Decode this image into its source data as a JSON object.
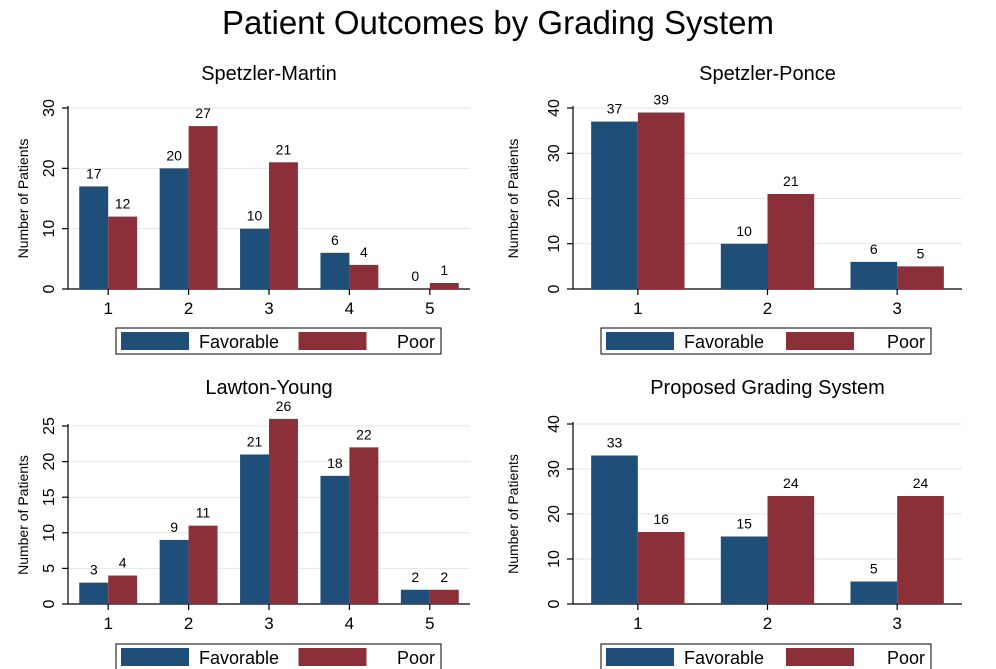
{
  "title": "Patient Outcomes by Grading System",
  "colors": {
    "favorable": "#1f4e79",
    "poor": "#8b3038",
    "axis": "#000000",
    "grid": "#e6e6e6"
  },
  "chart_data": [
    {
      "type": "bar",
      "title": "Spetzler-Martin",
      "categories": [
        "1",
        "2",
        "3",
        "4",
        "5"
      ],
      "series": [
        {
          "name": "Favorable",
          "values": [
            17,
            20,
            10,
            6,
            0
          ]
        },
        {
          "name": "Poor",
          "values": [
            12,
            27,
            21,
            4,
            1
          ]
        }
      ],
      "ylabel": "Number of Patients",
      "ylim": [
        0,
        30
      ],
      "yticks": [
        0,
        10,
        20,
        30
      ],
      "grid": true,
      "legend": "bottom"
    },
    {
      "type": "bar",
      "title": "Spetzler-Ponce",
      "categories": [
        "1",
        "2",
        "3"
      ],
      "series": [
        {
          "name": "Favorable",
          "values": [
            37,
            10,
            6
          ]
        },
        {
          "name": "Poor",
          "values": [
            39,
            21,
            5
          ]
        }
      ],
      "ylabel": "Number of Patients",
      "ylim": [
        0,
        40
      ],
      "yticks": [
        0,
        10,
        20,
        30,
        40
      ],
      "grid": true,
      "legend": "bottom"
    },
    {
      "type": "bar",
      "title": "Lawton-Young",
      "categories": [
        "1",
        "2",
        "3",
        "4",
        "5"
      ],
      "series": [
        {
          "name": "Favorable",
          "values": [
            3,
            9,
            21,
            18,
            2
          ]
        },
        {
          "name": "Poor",
          "values": [
            4,
            11,
            26,
            22,
            2
          ]
        }
      ],
      "ylabel": "Number of Patients",
      "ylim": [
        0,
        25
      ],
      "yticks": [
        0,
        5,
        10,
        15,
        20,
        25
      ],
      "grid": true,
      "legend": "bottom"
    },
    {
      "type": "bar",
      "title": "Proposed Grading System",
      "categories": [
        "1",
        "2",
        "3"
      ],
      "series": [
        {
          "name": "Favorable",
          "values": [
            33,
            15,
            5
          ]
        },
        {
          "name": "Poor",
          "values": [
            16,
            24,
            24
          ]
        }
      ],
      "ylabel": "Number of Patients",
      "ylim": [
        0,
        40
      ],
      "yticks": [
        0,
        10,
        20,
        30,
        40
      ],
      "grid": true,
      "legend": "bottom"
    }
  ]
}
